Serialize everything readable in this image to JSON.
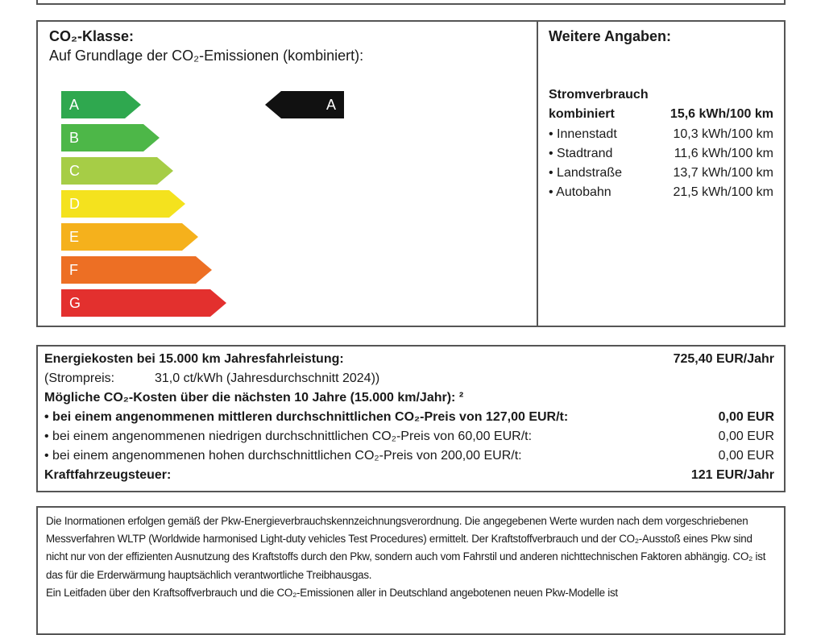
{
  "co2_class": {
    "title": "CO₂-Klasse:",
    "subtitle": "Auf Grundlage der CO₂-Emissionen (kombiniert):",
    "classes": [
      {
        "label": "A",
        "color": "#2fa84f"
      },
      {
        "label": "B",
        "color": "#4db748"
      },
      {
        "label": "C",
        "color": "#a6cd46"
      },
      {
        "label": "D",
        "color": "#f4e21e"
      },
      {
        "label": "E",
        "color": "#f5b11c"
      },
      {
        "label": "F",
        "color": "#ed6f24"
      },
      {
        "label": "G",
        "color": "#e3302e"
      }
    ],
    "current_class": "A"
  },
  "weitere": {
    "title": "Weitere Angaben:",
    "heading": "Stromverbrauch",
    "combined_label": "kombiniert",
    "combined_value": "15,6 kWh/100 km",
    "rows": [
      {
        "label": "• Innenstadt",
        "value": "10,3 kWh/100 km"
      },
      {
        "label": "• Stadtrand",
        "value": "11,6 kWh/100 km"
      },
      {
        "label": "• Landstraße",
        "value": "13,7 kWh/100 km"
      },
      {
        "label": "• Autobahn",
        "value": "21,5 kWh/100 km"
      }
    ]
  },
  "costs": {
    "energy_label": "Energiekosten bei 15.000 km Jahresfahrleistung:",
    "energy_value": "725,40 EUR/Jahr",
    "price_label": "(Strompreis:",
    "price_value": "31,0 ct/kWh (Jahresdurchschnitt 2024))",
    "co2_heading": "Mögliche CO₂-Kosten über die nächsten 10 Jahre (15.000 km/Jahr): ²",
    "co2_rows": [
      {
        "label": "• bei einem angenommenen mittleren durchschnittlichen CO₂-Preis von 127,00 EUR/t:",
        "value": "0,00 EUR",
        "bold": true
      },
      {
        "label": "• bei einem angenommenen niedrigen durchschnittlichen CO₂-Preis von 60,00 EUR/t:",
        "value": "0,00 EUR",
        "bold": false
      },
      {
        "label": "• bei einem angenommenen hohen durchschnittlichen CO₂-Preis von 200,00 EUR/t:",
        "value": "0,00 EUR",
        "bold": false
      }
    ],
    "tax_label": "Kraftfahrzeugsteuer:",
    "tax_value": "121 EUR/Jahr"
  },
  "info": {
    "paragraph1": "Die Inormationen erfolgen gemäß der Pkw-Energieverbrauchskennzeichnungsverordnung. Die angegebenen Werte wurden nach dem vorgeschriebenen Messverfahren WLTP (Worldwide harmonised Light-duty vehicles Test Procedures) ermittelt. Der Kraftstoffverbrauch und der CO₂-Ausstoß eines Pkw sind nicht nur von der effizienten Ausnutzung des Kraftstoffs durch den Pkw, sondern auch vom Fahrstil und anderen nichttechnischen Faktoren abhängig. CO₂ ist das für die Erderwärmung hauptsächlich verantwortliche Treibhausgas.",
    "paragraph2": "Ein Leitfaden über den Kraftsoffverbrauch und die CO₂-Emissionen aller in Deutschland angebotenen neuen Pkw-Modelle ist"
  }
}
